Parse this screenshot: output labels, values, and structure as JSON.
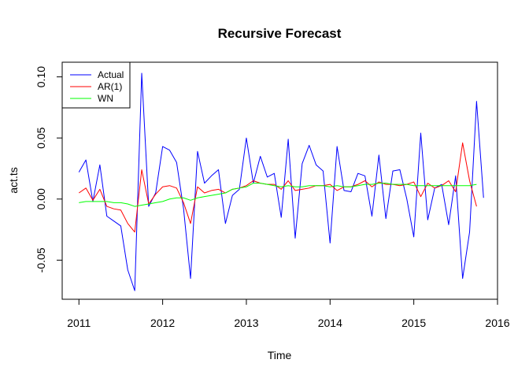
{
  "chart_data": {
    "type": "line",
    "title": "Recursive Forecast",
    "xlabel": "Time",
    "ylabel": "act.ts",
    "xlim": [
      2010.8,
      2016.0
    ],
    "ylim": [
      -0.082,
      0.112
    ],
    "xticks": [
      2011,
      2012,
      2013,
      2014,
      2015,
      2016
    ],
    "xtick_labels": [
      "2011",
      "2012",
      "2013",
      "2014",
      "2015",
      "2016"
    ],
    "yticks": [
      -0.05,
      0.0,
      0.05,
      0.1
    ],
    "ytick_labels": [
      "-0.05",
      "0.00",
      "0.05",
      "0.10"
    ],
    "grid": false,
    "legend_position": "top-left",
    "series": [
      {
        "name": "Actual",
        "color": "#0000ff",
        "x_start": 2011.0,
        "x_step": 0.08333,
        "values": [
          0.022,
          0.032,
          -0.002,
          0.028,
          -0.014,
          -0.018,
          -0.022,
          -0.058,
          -0.075,
          0.103,
          -0.006,
          0.005,
          0.043,
          0.04,
          0.03,
          -0.008,
          -0.065,
          0.039,
          0.013,
          0.019,
          0.024,
          -0.02,
          0.003,
          0.008,
          0.05,
          0.013,
          0.035,
          0.018,
          0.021,
          -0.015,
          0.049,
          -0.032,
          0.029,
          0.044,
          0.028,
          0.023,
          -0.036,
          0.043,
          0.007,
          0.006,
          0.021,
          0.019,
          -0.014,
          0.036,
          -0.016,
          0.023,
          0.024,
          0.0,
          -0.031,
          0.054,
          -0.017,
          0.009,
          0.012,
          -0.021,
          0.019,
          -0.065,
          -0.027,
          0.08,
          0.001
        ]
      },
      {
        "name": "AR(1)",
        "color": "#ff0000",
        "x_start": 2011.0,
        "x_step": 0.08333,
        "values": [
          0.005,
          0.009,
          -0.001,
          0.008,
          -0.006,
          -0.008,
          -0.009,
          -0.02,
          -0.027,
          0.024,
          -0.004,
          0.004,
          0.01,
          0.011,
          0.009,
          -0.003,
          -0.02,
          0.01,
          0.005,
          0.007,
          0.008,
          0.005,
          0.008,
          0.009,
          0.011,
          0.015,
          0.013,
          0.012,
          0.012,
          0.008,
          0.015,
          0.007,
          0.008,
          0.009,
          0.011,
          0.011,
          0.012,
          0.007,
          0.01,
          0.01,
          0.012,
          0.015,
          0.01,
          0.014,
          0.012,
          0.012,
          0.011,
          0.012,
          0.014,
          0.002,
          0.013,
          0.009,
          0.011,
          0.015,
          0.006,
          0.046,
          0.015,
          -0.006
        ]
      },
      {
        "name": "WN",
        "color": "#00ff00",
        "x_start": 2011.0,
        "x_step": 0.08333,
        "values": [
          -0.003,
          -0.002,
          -0.002,
          -0.002,
          -0.002,
          -0.003,
          -0.003,
          -0.004,
          -0.006,
          -0.005,
          -0.004,
          -0.003,
          -0.002,
          0.0,
          0.001,
          0.001,
          -0.001,
          0.001,
          0.002,
          0.003,
          0.004,
          0.005,
          0.008,
          0.009,
          0.01,
          0.013,
          0.013,
          0.012,
          0.011,
          0.01,
          0.011,
          0.01,
          0.01,
          0.011,
          0.011,
          0.011,
          0.01,
          0.011,
          0.01,
          0.01,
          0.011,
          0.012,
          0.012,
          0.013,
          0.013,
          0.012,
          0.012,
          0.012,
          0.011,
          0.011,
          0.011,
          0.011,
          0.011,
          0.011,
          0.011,
          0.011,
          0.011,
          0.012
        ]
      }
    ]
  }
}
